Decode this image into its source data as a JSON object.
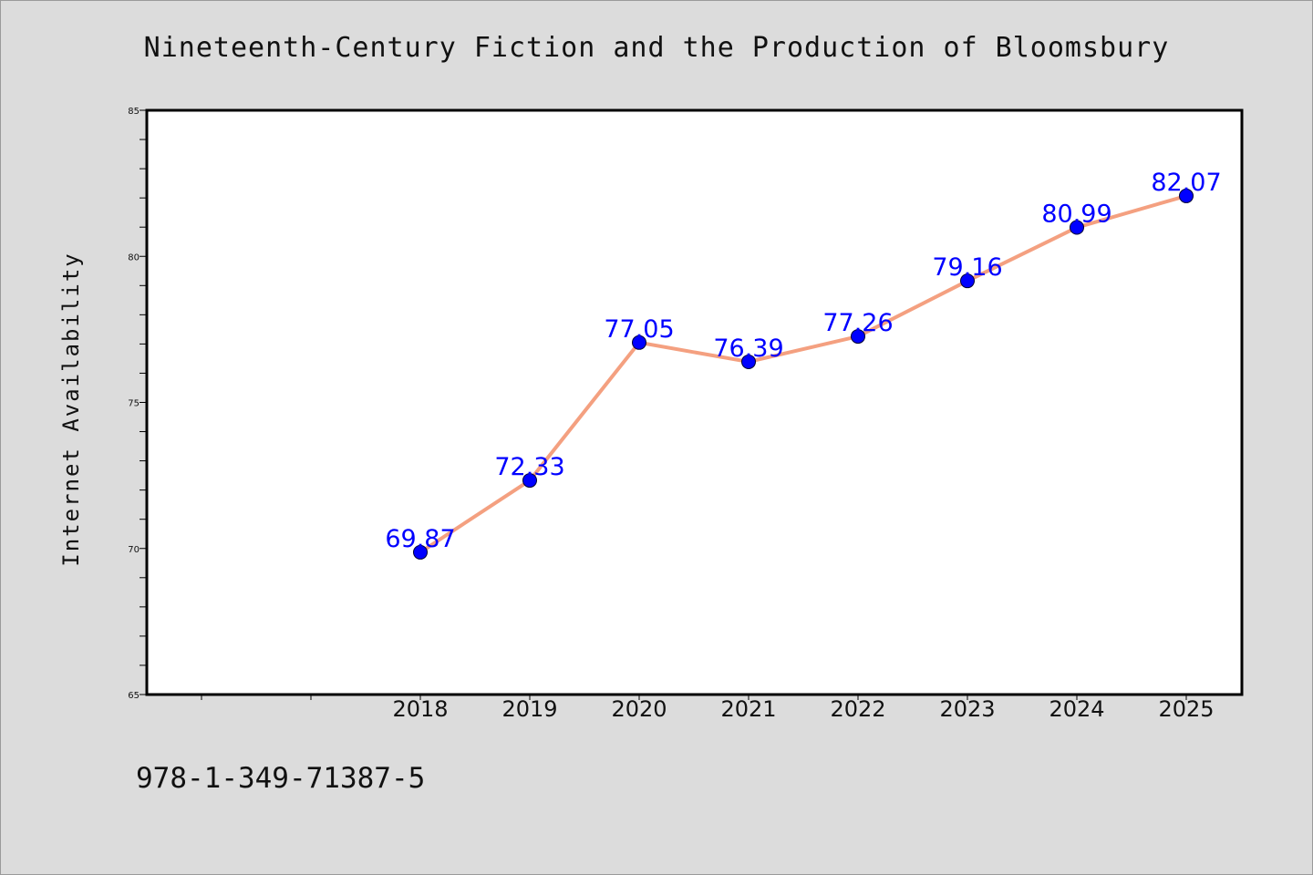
{
  "chart_data": {
    "type": "line",
    "title": "Nineteenth-Century Fiction and the Production of Bloomsbury",
    "xlabel": "",
    "ylabel": "Internet Availability",
    "categories": [
      "2018",
      "2019",
      "2020",
      "2021",
      "2022",
      "2023",
      "2024",
      "2025"
    ],
    "series": [
      {
        "values": [
          69.87,
          72.33,
          77.05,
          76.39,
          77.26,
          79.16,
          80.99,
          82.07
        ],
        "labels": [
          "69.87",
          "72.33",
          "77.05",
          "76.39",
          "77.26",
          "79.16",
          "80.99",
          "82.07"
        ]
      }
    ],
    "ylim": [
      65,
      85
    ],
    "yticks": [
      "65",
      "70",
      "75",
      "80",
      "85"
    ],
    "grid": false,
    "colors": {
      "line": "#f4a080",
      "marker": "#0000ff",
      "data_label": "#0000ff",
      "plot_background": "#ffffff",
      "page_background": "#dcdcdc"
    }
  },
  "footer": {
    "isbn": "978-1-349-71387-5"
  }
}
